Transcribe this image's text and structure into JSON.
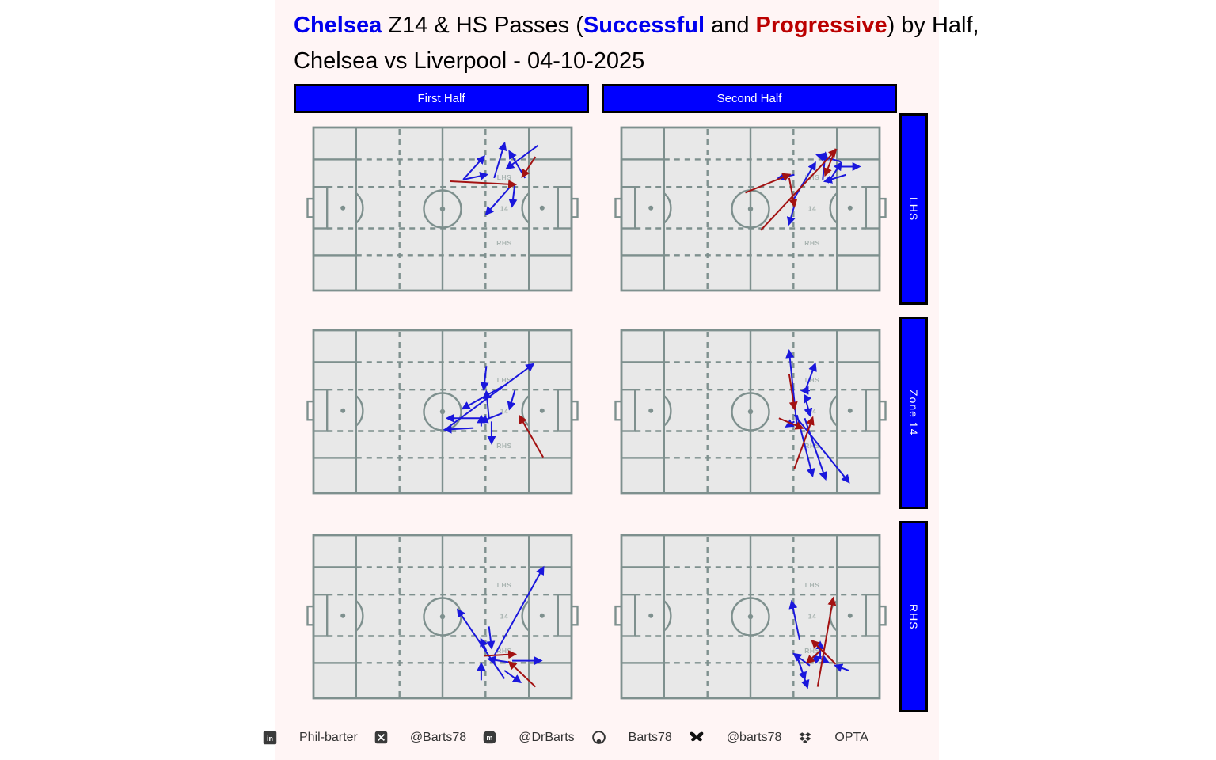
{
  "title": {
    "parts": [
      {
        "text": "Chelsea ",
        "color": "#0000EE",
        "bold": true
      },
      {
        "text": "Z14 & HS Passes (",
        "color": "#000000",
        "bold": false
      },
      {
        "text": "Successful",
        "color": "#0000EE",
        "bold": true
      },
      {
        "text": " and ",
        "color": "#000000",
        "bold": false
      },
      {
        "text": "Progressive",
        "color": "#BB0000",
        "bold": true
      },
      {
        "text": ") by Half,",
        "color": "#000000",
        "bold": false
      }
    ],
    "line2": "Chelsea vs Liverpool - 04-10-2025"
  },
  "columns": [
    "First Half",
    "Second Half"
  ],
  "rows": [
    "LHS",
    "Zone 14",
    "RHS"
  ],
  "colors": {
    "header_bar": "#0000FF",
    "bar_text": "#FFFFFF",
    "figure_background": "#FFF5F5",
    "pitch_fill": "#E8E8E8",
    "pitch_lines": "#7E908E",
    "zone_label_text": "#A9B4B1",
    "successful": "#1A17DC",
    "progressive": "#A31212"
  },
  "chart_data": {
    "type": "pass-map",
    "title": "Chelsea Z14 & HS Passes (Successful and Progressive) by Half, Chelsea vs Liverpool - 04-10-2025",
    "columns": [
      "First Half",
      "Second Half"
    ],
    "rows": [
      "LHS",
      "Zone 14",
      "RHS"
    ],
    "zone_labels": [
      "LHS",
      "14",
      "RHS"
    ],
    "legend": {
      "successful_color": "#1A17DC",
      "progressive_color": "#A31212"
    },
    "pass_format": "x1,y1,x2,y2,type — coordinates are % of pitch from top-left, attack left to right; S=successful, P=progressive",
    "panels": [
      {
        "row": "LHS",
        "column": "First Half",
        "passes": [
          [
            87,
            11,
            75,
            25,
            "S"
          ],
          [
            70,
            31,
            74,
            10,
            "S"
          ],
          [
            58,
            32,
            66,
            18,
            "S"
          ],
          [
            58,
            32,
            67,
            29,
            "S"
          ],
          [
            82,
            31,
            76,
            15,
            "S"
          ],
          [
            77,
            35,
            67,
            53,
            "S"
          ],
          [
            78,
            35,
            77,
            48,
            "S"
          ],
          [
            53,
            33,
            78,
            35,
            "P"
          ],
          [
            86,
            18,
            81,
            30,
            "P"
          ]
        ]
      },
      {
        "row": "LHS",
        "column": "Second Half",
        "passes": [
          [
            67,
            29,
            61,
            31,
            "S"
          ],
          [
            67,
            48,
            65,
            59,
            "S"
          ],
          [
            66,
            46,
            75,
            22,
            "S"
          ],
          [
            85,
            21,
            76,
            17,
            "S"
          ],
          [
            78,
            32,
            79,
            16,
            "S"
          ],
          [
            84,
            24,
            92,
            24,
            "S"
          ],
          [
            80,
            34,
            85,
            22,
            "S"
          ],
          [
            87,
            29,
            79,
            33,
            "S"
          ],
          [
            48,
            40,
            65,
            29,
            "P"
          ],
          [
            65,
            31,
            67,
            48,
            "P"
          ],
          [
            54,
            63,
            83,
            14,
            "P"
          ],
          [
            83,
            13,
            79,
            29,
            "P"
          ]
        ]
      },
      {
        "row": "Zone 14",
        "column": "First Half",
        "passes": [
          [
            67,
            22,
            66,
            36,
            "S"
          ],
          [
            51,
            61,
            85,
            21,
            "S"
          ],
          [
            75,
            33,
            58,
            48,
            "S"
          ],
          [
            68,
            54,
            67,
            38,
            "S"
          ],
          [
            78,
            37,
            76,
            48,
            "S"
          ],
          [
            73,
            51,
            65,
            56,
            "S"
          ],
          [
            67,
            54,
            52,
            54,
            "S"
          ],
          [
            62,
            60,
            51,
            61,
            "S"
          ],
          [
            65,
            59,
            65,
            53,
            "S"
          ],
          [
            69,
            56,
            69,
            69,
            "S"
          ],
          [
            89,
            78,
            80,
            53,
            "P"
          ]
        ]
      },
      {
        "row": "Zone 14",
        "column": "Second Half",
        "passes": [
          [
            68,
            59,
            65,
            13,
            "S"
          ],
          [
            71,
            38,
            75,
            21,
            "S"
          ],
          [
            73,
            37,
            70,
            37,
            "S"
          ],
          [
            72,
            41,
            71,
            44,
            "S"
          ],
          [
            71,
            40,
            73,
            52,
            "S"
          ],
          [
            67,
            56,
            64,
            59,
            "S"
          ],
          [
            67,
            52,
            88,
            93,
            "S"
          ],
          [
            71,
            54,
            79,
            91,
            "S"
          ],
          [
            68,
            52,
            74,
            89,
            "S"
          ],
          [
            65,
            27,
            67,
            48,
            "P"
          ],
          [
            67,
            85,
            74,
            54,
            "P"
          ],
          [
            61,
            54,
            70,
            60,
            "P"
          ]
        ]
      },
      {
        "row": "RHS",
        "column": "First Half",
        "passes": [
          [
            70,
            74,
            89,
            20,
            "S"
          ],
          [
            74,
            88,
            56,
            46,
            "S"
          ],
          [
            68,
            56,
            69,
            69,
            "S"
          ],
          [
            67,
            71,
            65,
            64,
            "S"
          ],
          [
            65,
            89,
            65,
            79,
            "S"
          ],
          [
            76,
            78,
            68,
            76,
            "S"
          ],
          [
            77,
            77,
            88,
            77,
            "S"
          ],
          [
            74,
            83,
            80,
            90,
            "S"
          ],
          [
            66,
            74,
            78,
            73,
            "P"
          ],
          [
            86,
            93,
            76,
            78,
            "P"
          ]
        ]
      },
      {
        "row": "RHS",
        "column": "Second Half",
        "passes": [
          [
            69,
            64,
            66,
            41,
            "S"
          ],
          [
            77,
            76,
            77,
            66,
            "S"
          ],
          [
            73,
            80,
            67,
            73,
            "S"
          ],
          [
            68,
            74,
            71,
            88,
            "S"
          ],
          [
            68,
            74,
            72,
            93,
            "S"
          ],
          [
            75,
            74,
            80,
            78,
            "S"
          ],
          [
            88,
            83,
            83,
            80,
            "S"
          ],
          [
            74,
            77,
            77,
            75,
            "S"
          ],
          [
            76,
            93,
            82,
            39,
            "P"
          ],
          [
            83,
            79,
            74,
            65,
            "P"
          ],
          [
            77,
            71,
            72,
            78,
            "P"
          ]
        ]
      }
    ]
  },
  "footer": {
    "items": [
      {
        "icon": "linkedin-icon",
        "label": "Phil-barter"
      },
      {
        "icon": "x-icon",
        "label": "@Barts78"
      },
      {
        "icon": "mastodon-icon",
        "label": "@DrBarts"
      },
      {
        "icon": "github-icon",
        "label": "Barts78"
      },
      {
        "icon": "bluesky-icon",
        "label": "@barts78"
      },
      {
        "icon": "dropbox-icon",
        "label": "OPTA"
      }
    ]
  }
}
